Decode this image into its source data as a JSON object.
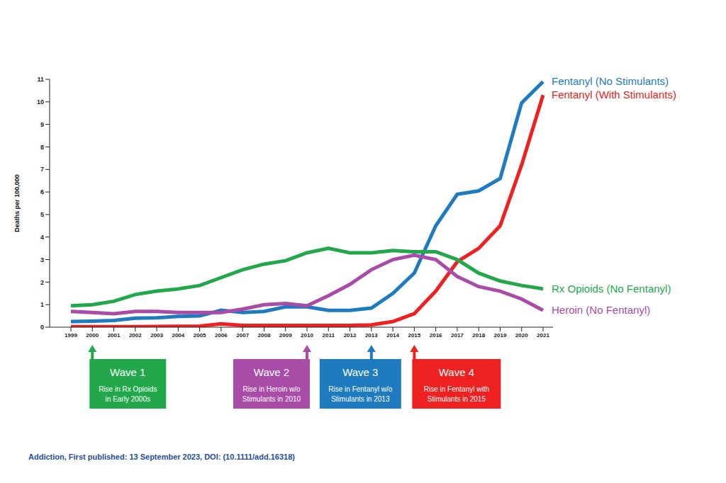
{
  "chart_data": {
    "type": "line",
    "ylabel": "Deaths per 100,000",
    "categories": [
      "1999",
      "2000",
      "2001",
      "2002",
      "2003",
      "2004",
      "2005",
      "2006",
      "2007",
      "2008",
      "2009",
      "2010",
      "2011",
      "2012",
      "2013",
      "2014",
      "2015",
      "2016",
      "2017",
      "2018",
      "2019",
      "2020",
      "2021"
    ],
    "ylim": [
      0,
      11
    ],
    "yticks": [
      0,
      1,
      2,
      3,
      4,
      5,
      6,
      7,
      8,
      9,
      10,
      11
    ],
    "grid": false,
    "series": [
      {
        "name": "Fentanyl (No Stimulants)",
        "color": "#1f7bbf",
        "values": [
          0.25,
          0.27,
          0.3,
          0.4,
          0.42,
          0.48,
          0.5,
          0.75,
          0.65,
          0.7,
          0.9,
          0.9,
          0.75,
          0.75,
          0.85,
          1.5,
          2.4,
          4.5,
          5.9,
          6.05,
          6.6,
          9.95,
          10.9
        ]
      },
      {
        "name": "Fentanyl (With Stimulants)",
        "color": "#ee2020",
        "values": [
          0.02,
          0.02,
          0.02,
          0.02,
          0.03,
          0.04,
          0.05,
          0.15,
          0.08,
          0.08,
          0.08,
          0.08,
          0.08,
          0.08,
          0.1,
          0.25,
          0.6,
          1.6,
          2.9,
          3.5,
          4.5,
          7.2,
          10.3
        ]
      },
      {
        "name": "Rx Opioids (No Fentanyl)",
        "color": "#22a84a",
        "values": [
          0.95,
          1.0,
          1.15,
          1.45,
          1.6,
          1.7,
          1.85,
          2.2,
          2.55,
          2.8,
          2.95,
          3.3,
          3.5,
          3.3,
          3.3,
          3.4,
          3.35,
          3.35,
          3.0,
          2.4,
          2.05,
          1.85,
          1.7
        ]
      },
      {
        "name": "Heroin (No Fentanyl)",
        "color": "#a84ca8",
        "values": [
          0.7,
          0.65,
          0.6,
          0.7,
          0.7,
          0.65,
          0.65,
          0.65,
          0.8,
          1.0,
          1.05,
          0.95,
          1.4,
          1.9,
          2.55,
          3.0,
          3.2,
          3.0,
          2.25,
          1.8,
          1.6,
          1.25,
          0.75
        ]
      }
    ],
    "annotations": [
      {
        "label": "Wave 1",
        "text": [
          "Rise in Rx Opioids",
          "in Early 2000s"
        ],
        "x": "2000",
        "color": "#22a84a"
      },
      {
        "label": "Wave 2",
        "text": [
          "Rise in Heroin w/o",
          "Stimulants in 2010"
        ],
        "x": "2010",
        "color": "#a84ca8"
      },
      {
        "label": "Wave 3",
        "text": [
          "Rise in Fentanyl w/o",
          "Stimulants in 2013"
        ],
        "x": "2013",
        "color": "#1f7bbf"
      },
      {
        "label": "Wave 4",
        "text": [
          "Rise in Fentanyl with",
          "Stimulants in 2015"
        ],
        "x": "2015",
        "color": "#ee2020"
      }
    ],
    "source": "Addiction, First published: 13 September 2023, DOI: (10.1111/add.16318)"
  }
}
